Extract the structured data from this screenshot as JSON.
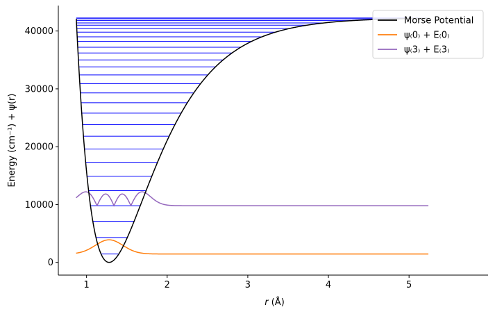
{
  "chart_data": {
    "type": "line",
    "xlabel_var": "r",
    "xlabel_unit": " (Å)",
    "ylabel": "Energy (cm⁻¹) + ψ(r)",
    "xlim": [
      0.87,
      5.24
    ],
    "ylim": [
      0,
      42300
    ],
    "x_ticks": [
      1,
      2,
      3,
      4,
      5
    ],
    "y_ticks": [
      0,
      10000,
      20000,
      30000,
      40000
    ],
    "grid": false,
    "legend_position": "top-right",
    "colors": {
      "potential": "#000000",
      "levels": "#0000ff",
      "psi0": "#ff7f0e",
      "psi3": "#9467bd"
    },
    "potential": {
      "name": "Morse Potential",
      "model": "Morse",
      "De": 42300,
      "re": 1.28,
      "a": 1.7
    },
    "energy_levels": [
      1450,
      4300,
      7100,
      9800,
      12400,
      14900,
      17300,
      19600,
      21800,
      23800,
      25800,
      27600,
      29300,
      30900,
      32400,
      33800,
      35000,
      36200,
      37200,
      38200,
      39000,
      39800,
      40400,
      41000,
      41400,
      41800,
      42100,
      42250
    ],
    "series": [
      {
        "name": "ψ₍0₎ + E₍0₎",
        "baseline": 1450,
        "quantum_number": 0,
        "amplitude": 2450
      },
      {
        "name": "ψ₍3₎ + E₍3₎",
        "baseline": 9800,
        "quantum_number": 3,
        "amplitude": 2400
      }
    ]
  }
}
